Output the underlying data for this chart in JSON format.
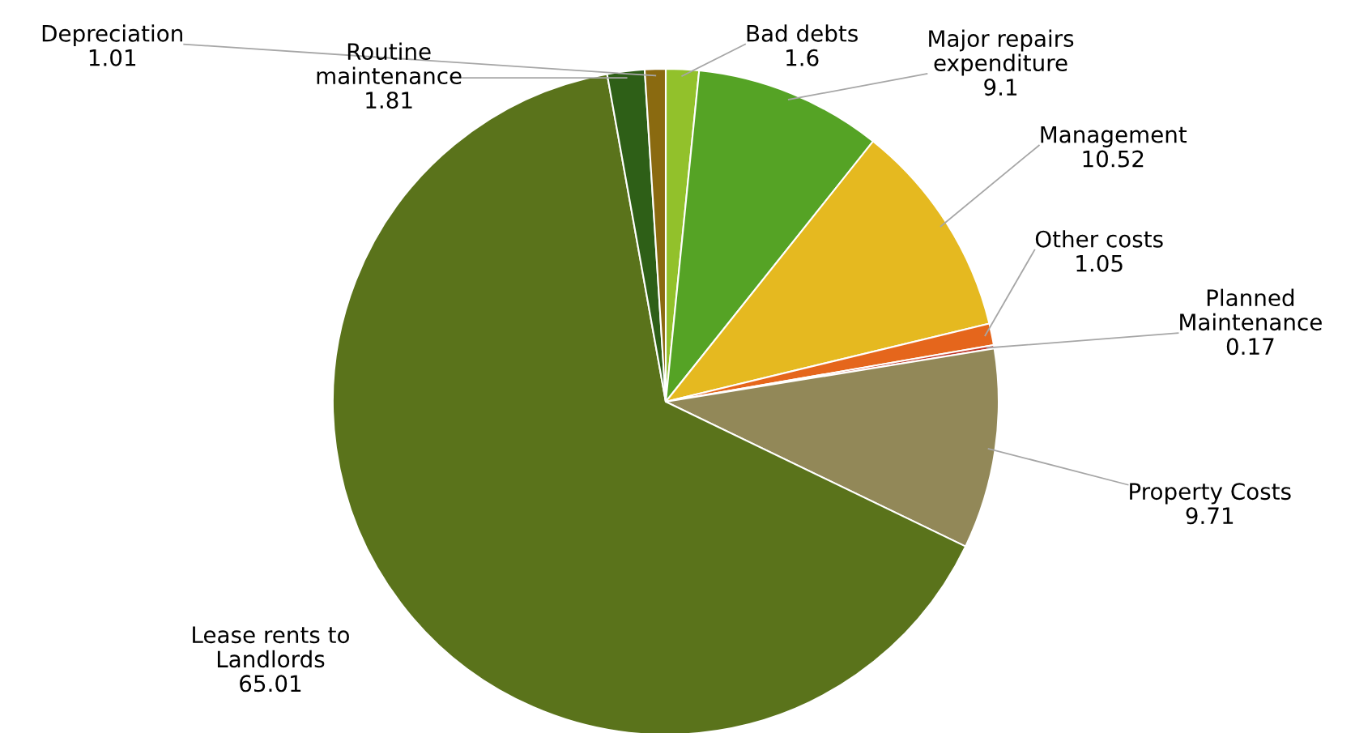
{
  "chart_data": {
    "type": "pie",
    "categories": [
      "Bad debts",
      "Major repairs expenditure",
      "Management",
      "Other costs",
      "Planned Maintenance",
      "Property Costs",
      "Lease rents to Landlords",
      "Routine maintenance",
      "Depreciation"
    ],
    "values": [
      1.6,
      9.1,
      10.52,
      1.05,
      0.17,
      9.71,
      65.01,
      1.81,
      1.01
    ],
    "colors": [
      "#92c12b",
      "#55a325",
      "#e5b920",
      "#e5661c",
      "#c0392b",
      "#928858",
      "#5a731b",
      "#2e5f17",
      "#8a6a10"
    ],
    "data_labels": true,
    "legend": false
  }
}
